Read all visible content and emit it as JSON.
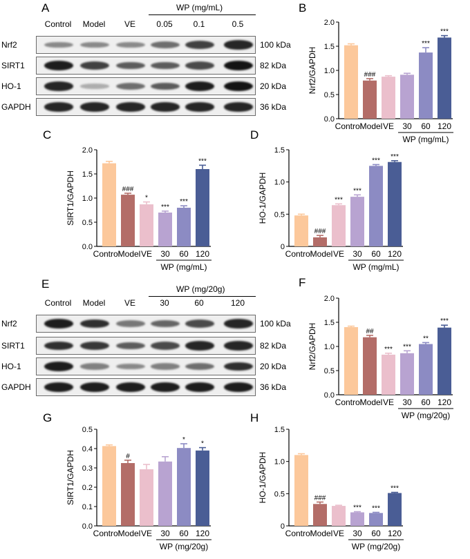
{
  "panel_letters": {
    "a": "A",
    "b": "B",
    "c": "C",
    "d": "D",
    "e": "E",
    "f": "F",
    "g": "G",
    "h": "H"
  },
  "colors": [
    "#fcc89b",
    "#b36d68",
    "#ebbfcc",
    "#b8a3d1",
    "#8c8bc3",
    "#4a5d95"
  ],
  "blots": [
    {
      "group_label": "WP (mg/mL)",
      "lane_labels": [
        "Control",
        "Model",
        "VE",
        "0.05",
        "0.1",
        "0.5"
      ],
      "proteins": [
        {
          "name": "Nrf2",
          "size": "100 kDa",
          "intensity": [
            0.35,
            0.35,
            0.35,
            0.5,
            0.75,
            0.9
          ]
        },
        {
          "name": "SIRT1",
          "size": "82 kDa",
          "intensity": [
            0.95,
            0.75,
            0.6,
            0.6,
            0.7,
            1.0
          ]
        },
        {
          "name": "HO-1",
          "size": "20 kDa",
          "intensity": [
            0.9,
            0.15,
            0.5,
            0.6,
            0.95,
            1.0
          ]
        },
        {
          "name": "GAPDH",
          "size": "36 kDa",
          "intensity": [
            0.9,
            0.9,
            0.9,
            0.9,
            0.9,
            0.9
          ]
        }
      ]
    },
    {
      "group_label": "WP (mg/20g)",
      "lane_labels": [
        "Control",
        "Model",
        "VE",
        "30",
        "60",
        "120"
      ],
      "proteins": [
        {
          "name": "Nrf2",
          "size": "100 kDa",
          "intensity": [
            0.95,
            0.85,
            0.45,
            0.55,
            0.7,
            0.9
          ]
        },
        {
          "name": "SIRT1",
          "size": "82 kDa",
          "intensity": [
            0.85,
            0.8,
            0.6,
            0.7,
            0.9,
            0.9
          ]
        },
        {
          "name": "HO-1",
          "size": "20 kDa",
          "intensity": [
            0.95,
            0.4,
            0.35,
            0.4,
            0.5,
            0.85
          ]
        },
        {
          "name": "GAPDH",
          "size": "36 kDa",
          "intensity": [
            0.95,
            0.95,
            0.95,
            0.95,
            0.95,
            0.95
          ]
        }
      ]
    }
  ],
  "chart_data": [
    {
      "panel": "B",
      "type": "bar",
      "ylabel": "Nrf2/GAPDH",
      "ylim": [
        0,
        2.0
      ],
      "yticks": [
        "0.0",
        "0.5",
        "1.0",
        "1.5",
        "2.0"
      ],
      "categories": [
        "Control",
        "Model",
        "VE",
        "30",
        "60",
        "120"
      ],
      "group_label": "WP (mg/mL)",
      "values": [
        1.52,
        0.79,
        0.87,
        0.91,
        1.37,
        1.68
      ],
      "errors": [
        0.03,
        0.04,
        0.02,
        0.03,
        0.1,
        0.04
      ],
      "annotations": [
        "",
        "###",
        "",
        "",
        "***",
        "***"
      ]
    },
    {
      "panel": "C",
      "type": "bar",
      "ylabel": "SIRT1/GAPDH",
      "ylim": [
        0,
        2.0
      ],
      "yticks": [
        "0.0",
        "0.5",
        "1.0",
        "1.5",
        "2.0"
      ],
      "categories": [
        "Control",
        "Model",
        "VE",
        "30",
        "60",
        "120"
      ],
      "group_label": "WP (mg/mL)",
      "values": [
        1.72,
        1.07,
        0.87,
        0.7,
        0.8,
        1.6
      ],
      "errors": [
        0.04,
        0.03,
        0.05,
        0.03,
        0.04,
        0.08
      ],
      "annotations": [
        "",
        "###",
        "*",
        "***",
        "***",
        "***"
      ]
    },
    {
      "panel": "D",
      "type": "bar",
      "ylabel": "HO-1/GAPDH",
      "ylim": [
        0,
        1.5
      ],
      "yticks": [
        "0",
        "0.5",
        "1.0",
        "1.5"
      ],
      "categories": [
        "Control",
        "Model",
        "VE",
        "30",
        "60",
        "120"
      ],
      "group_label": "WP (mg/mL)",
      "values": [
        0.48,
        0.14,
        0.64,
        0.77,
        1.25,
        1.31
      ],
      "errors": [
        0.02,
        0.03,
        0.02,
        0.03,
        0.02,
        0.02
      ],
      "annotations": [
        "",
        "###",
        "***",
        "***",
        "***",
        "***"
      ]
    },
    {
      "panel": "F",
      "type": "bar",
      "ylabel": "Nrf2/GAPDH",
      "ylim": [
        0,
        2.0
      ],
      "yticks": [
        "0.0",
        "0.5",
        "1.0",
        "1.5",
        "2.0"
      ],
      "categories": [
        "Control",
        "Model",
        "VE",
        "30",
        "60",
        "120"
      ],
      "group_label": "WP (mg/20g)",
      "values": [
        1.4,
        1.19,
        0.83,
        0.86,
        1.05,
        1.39
      ],
      "errors": [
        0.02,
        0.04,
        0.03,
        0.05,
        0.03,
        0.05
      ],
      "annotations": [
        "",
        "##",
        "***",
        "***",
        "**",
        "***"
      ]
    },
    {
      "panel": "G",
      "type": "bar",
      "ylabel": "SIRT1/GAPDH",
      "ylim": [
        0,
        0.5
      ],
      "yticks": [
        "0.0",
        "0.1",
        "0.2",
        "0.3",
        "0.4",
        "0.5"
      ],
      "categories": [
        "Control",
        "Model",
        "VE",
        "30",
        "60",
        "120"
      ],
      "group_label": "WP (mg/20g)",
      "values": [
        0.413,
        0.325,
        0.293,
        0.333,
        0.403,
        0.39
      ],
      "errors": [
        0.006,
        0.015,
        0.025,
        0.025,
        0.022,
        0.015
      ],
      "annotations": [
        "",
        "#",
        "",
        "",
        "*",
        "*"
      ]
    },
    {
      "panel": "H",
      "type": "bar",
      "ylabel": "HO-1/GAPDH",
      "ylim": [
        0,
        1.5
      ],
      "yticks": [
        "0",
        "0.5",
        "1.0",
        "1.5"
      ],
      "categories": [
        "Control",
        "Model",
        "VE",
        "30",
        "60",
        "120"
      ],
      "group_label": "WP (mg/20g)",
      "values": [
        1.1,
        0.34,
        0.31,
        0.21,
        0.2,
        0.51
      ],
      "errors": [
        0.02,
        0.03,
        0.01,
        0.01,
        0.01,
        0.01
      ],
      "annotations": [
        "",
        "###",
        "",
        "***",
        "***",
        "***"
      ]
    }
  ]
}
